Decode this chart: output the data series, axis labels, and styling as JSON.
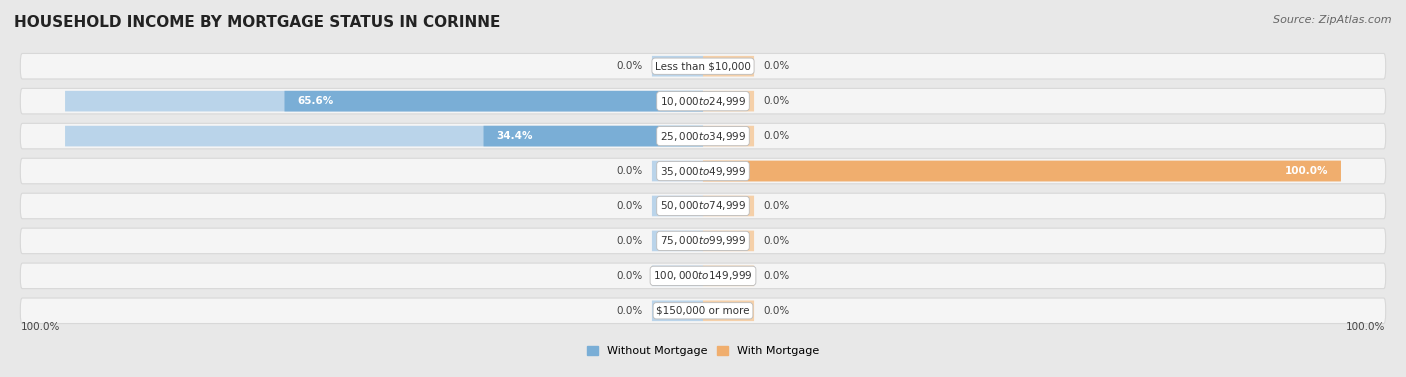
{
  "title": "HOUSEHOLD INCOME BY MORTGAGE STATUS IN CORINNE",
  "source": "Source: ZipAtlas.com",
  "categories": [
    "Less than $10,000",
    "$10,000 to $24,999",
    "$25,000 to $34,999",
    "$35,000 to $49,999",
    "$50,000 to $74,999",
    "$75,000 to $99,999",
    "$100,000 to $149,999",
    "$150,000 or more"
  ],
  "without_mortgage": [
    0.0,
    65.6,
    34.4,
    0.0,
    0.0,
    0.0,
    0.0,
    0.0
  ],
  "with_mortgage": [
    0.0,
    0.0,
    0.0,
    100.0,
    0.0,
    0.0,
    0.0,
    0.0
  ],
  "color_without": "#7aaed6",
  "color_with": "#f0ae6e",
  "color_without_light": "#bad4ea",
  "color_with_light": "#f5d0a9",
  "bg_color": "#e8e8e8",
  "row_bg_color": "#f5f5f5",
  "row_edge_color": "#d8d8d8",
  "title_fontsize": 11,
  "source_fontsize": 8,
  "label_fontsize": 7.5,
  "cat_fontsize": 7.5,
  "axis_label_left": "100.0%",
  "axis_label_right": "100.0%",
  "max_value": 100,
  "legend_labels": [
    "Without Mortgage",
    "With Mortgage"
  ]
}
